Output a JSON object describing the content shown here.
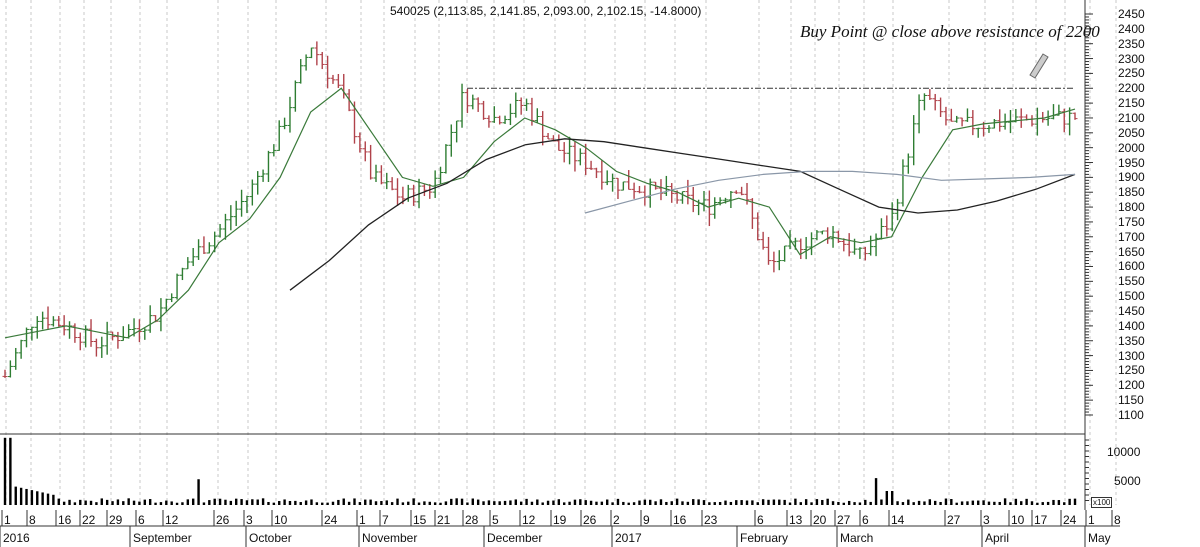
{
  "header": {
    "title": "540025 (2,113.85, 2,141.85, 2,093.00, 2,102.15, -14.8000)",
    "annotation": "Buy Point @ close above resistance of 2200"
  },
  "colors": {
    "up": "#2e7d32",
    "down": "#b0424a",
    "ma_short": "#3a7a3a",
    "ma_long": "#222222",
    "ma_grey": "#8a97a8",
    "resistance": "#333333",
    "volume": "#000000"
  },
  "y_axis": {
    "labels": [
      "2450",
      "2400",
      "2350",
      "2300",
      "2250",
      "2200",
      "2150",
      "2100",
      "2050",
      "2000",
      "1950",
      "1900",
      "1850",
      "1800",
      "1750",
      "1700",
      "1650",
      "1600",
      "1550",
      "1500",
      "1450",
      "1400",
      "1350",
      "1300",
      "1250",
      "1200",
      "1150",
      "1100"
    ]
  },
  "volume_axis": {
    "labels": [
      "10000",
      "5000"
    ],
    "multiplier": "x100"
  },
  "x_axis": {
    "days": [
      "1",
      "8",
      "16",
      "22",
      "29",
      "6",
      "12",
      "26",
      "3",
      "10",
      "24",
      "1",
      "7",
      "15",
      "21",
      "28",
      "5",
      "12",
      "19",
      "26",
      "2",
      "9",
      "16",
      "23",
      "6",
      "13",
      "20",
      "27",
      "6",
      "14",
      "27",
      "3",
      "10",
      "17",
      "24",
      "1",
      "8"
    ],
    "months": [
      "2016",
      "September",
      "October",
      "November",
      "December",
      "2017",
      "February",
      "March",
      "April",
      "May"
    ]
  },
  "chart_data": {
    "type": "ohlc",
    "title": "540025 (2,113.85, 2,141.85, 2,093.00, 2,102.15, -14.8000)",
    "last_bar": {
      "open": 2113.85,
      "high": 2141.85,
      "low": 2093.0,
      "close": 2102.15,
      "change": -14.8
    },
    "annotation": "Buy Point @ close above resistance of 2200",
    "resistance_level": 2200,
    "ylim": [
      1100,
      2450
    ],
    "xlabel": "",
    "ylabel": "",
    "x_range": "Aug 2016 - May 2017",
    "price_path_approx": [
      {
        "date": "2016-08-01",
        "close": 1230
      },
      {
        "date": "2016-08-08",
        "close": 1440
      },
      {
        "date": "2016-08-16",
        "close": 1400
      },
      {
        "date": "2016-08-22",
        "close": 1340
      },
      {
        "date": "2016-08-29",
        "close": 1380
      },
      {
        "date": "2016-09-06",
        "close": 1440
      },
      {
        "date": "2016-09-12",
        "close": 1620
      },
      {
        "date": "2016-09-26",
        "close": 1720
      },
      {
        "date": "2016-10-03",
        "close": 1850
      },
      {
        "date": "2016-10-10",
        "close": 2050
      },
      {
        "date": "2016-10-24",
        "close": 2350
      },
      {
        "date": "2016-11-01",
        "close": 2180
      },
      {
        "date": "2016-11-07",
        "close": 1900
      },
      {
        "date": "2016-11-15",
        "close": 1830
      },
      {
        "date": "2016-11-21",
        "close": 1870
      },
      {
        "date": "2016-11-28",
        "close": 2180
      },
      {
        "date": "2016-12-05",
        "close": 2100
      },
      {
        "date": "2016-12-12",
        "close": 2150
      },
      {
        "date": "2016-12-19",
        "close": 2000
      },
      {
        "date": "2016-12-26",
        "close": 1950
      },
      {
        "date": "2017-01-02",
        "close": 1880
      },
      {
        "date": "2017-01-09",
        "close": 1860
      },
      {
        "date": "2017-01-16",
        "close": 1830
      },
      {
        "date": "2017-01-23",
        "close": 1800
      },
      {
        "date": "2017-02-06",
        "close": 1880
      },
      {
        "date": "2017-02-13",
        "close": 1600
      },
      {
        "date": "2017-02-20",
        "close": 1680
      },
      {
        "date": "2017-02-27",
        "close": 1720
      },
      {
        "date": "2017-03-06",
        "close": 1630
      },
      {
        "date": "2017-03-14",
        "close": 1760
      },
      {
        "date": "2017-03-20",
        "close": 2180
      },
      {
        "date": "2017-03-27",
        "close": 2070
      },
      {
        "date": "2017-04-03",
        "close": 2080
      },
      {
        "date": "2017-04-10",
        "close": 2090
      },
      {
        "date": "2017-04-17",
        "close": 2100
      },
      {
        "date": "2017-04-24",
        "close": 2102
      }
    ],
    "series": [
      {
        "name": "short MA (green)",
        "values": [
          1360,
          1380,
          1400,
          1380,
          1360,
          1420,
          1520,
          1680,
          1760,
          1900,
          2120,
          2200,
          2050,
          1900,
          1870,
          1900,
          2020,
          2100,
          2060,
          2000,
          1920,
          1880,
          1850,
          1800,
          1830,
          1800,
          1640,
          1700,
          1680,
          1700,
          1900,
          2060,
          2080,
          2090,
          2100,
          2130
        ]
      },
      {
        "name": "long MA (black)",
        "start": "2016-10-10",
        "values": [
          1520,
          1620,
          1740,
          1830,
          1880,
          1960,
          2010,
          2030,
          2020,
          2000,
          1980,
          1960,
          1940,
          1920,
          1860,
          1800,
          1780,
          1790,
          1820,
          1860,
          1910
        ]
      },
      {
        "name": "grey MA",
        "start": "2016-12-26",
        "values": [
          1780,
          1820,
          1860,
          1890,
          1910,
          1920,
          1920,
          1910,
          1890,
          1895,
          1900,
          1910
        ]
      }
    ],
    "volume": {
      "unit": "x100",
      "ylim": [
        0,
        12500
      ],
      "notable": [
        {
          "date": "2016-08-01",
          "value": 12000
        },
        {
          "date": "2016-09-06",
          "value": 4600
        },
        {
          "date": "2017-03-20",
          "value": 4800
        }
      ],
      "typical": 800
    }
  }
}
